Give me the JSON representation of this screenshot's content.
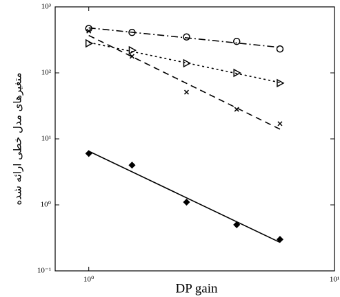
{
  "chart_data": {
    "type": "scatter",
    "x_label": "DP gain",
    "y_label": "متغیرهای مدل خطی ارائه شده",
    "log_x": true,
    "log_y": true,
    "xlim": [
      0.73,
      10
    ],
    "ylim": [
      0.1,
      1000
    ],
    "xticks": [
      {
        "value": 1,
        "label": "10⁰"
      },
      {
        "value": 10,
        "label": "10¹"
      }
    ],
    "yticks": [
      {
        "value": 0.1,
        "label": "10⁻¹"
      },
      {
        "value": 1,
        "label": "10⁰"
      },
      {
        "value": 10,
        "label": "10¹"
      },
      {
        "value": 100,
        "label": "10²"
      },
      {
        "value": 1000,
        "label": "10³"
      }
    ],
    "x": [
      1,
      1.5,
      2.5,
      4,
      6
    ],
    "series": [
      {
        "color": "#000000",
        "marker": "circle",
        "linestyle": "dashdot",
        "values": [
          470,
          410,
          350,
          300,
          230
        ]
      },
      {
        "color": "#000000",
        "marker": "triangle",
        "linestyle": "dotted",
        "values": [
          280,
          220,
          140,
          100,
          70
        ]
      },
      {
        "color": "#000000",
        "marker": "x",
        "linestyle": "dashed",
        "values": [
          430,
          178,
          51,
          28,
          17
        ]
      },
      {
        "color": "#000000",
        "marker": "diamond",
        "linestyle": "solid",
        "values": [
          6,
          4,
          1.1,
          0.5,
          0.3
        ]
      }
    ]
  }
}
